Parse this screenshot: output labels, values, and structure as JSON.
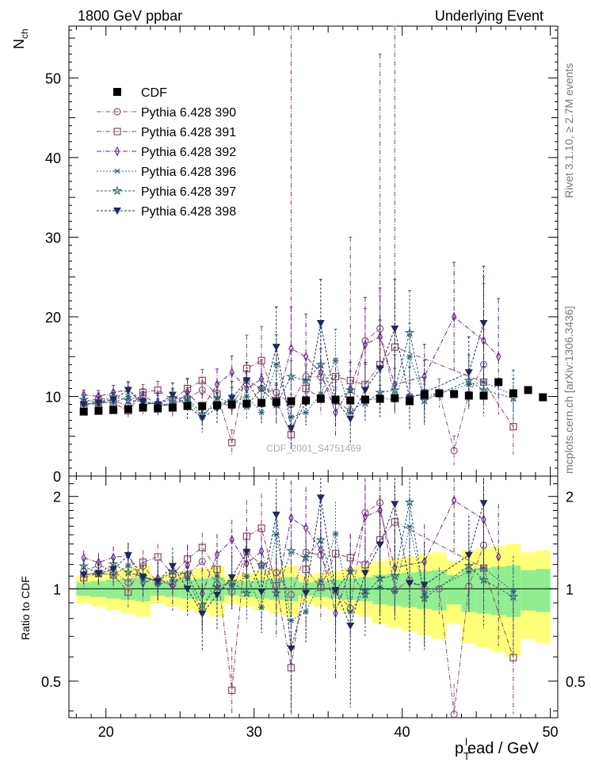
{
  "header": {
    "left": "1800 GeV ppbar",
    "right": "Underlying Event"
  },
  "side_labels": {
    "rivet": "Rivet 3.1.10, ≥ 2.7M events",
    "mcplots": "mcplots.cern.ch [arXiv:1306.3436]"
  },
  "watermark": "CDF_2001_S4751469",
  "chart_data": {
    "type": "scatter",
    "x_range": [
      17.5,
      50.5
    ],
    "x_ticks": [
      20,
      30,
      40,
      50
    ],
    "xlabel": {
      "main": "p",
      "sub": "T",
      "sup": "l",
      "rest": "ead / GeV"
    },
    "main": {
      "ylabel": {
        "main": "N",
        "sub": "ch"
      },
      "ylim": [
        0,
        56.5
      ],
      "y_ticks": [
        0,
        10,
        20,
        30,
        40,
        50
      ]
    },
    "ratio": {
      "ylabel": "Ratio to CDF",
      "ylim": [
        0.38,
        2.33
      ],
      "y_ticks": [
        0.5,
        1,
        2
      ],
      "y_tick_labels": [
        "0.5",
        "1",
        "2"
      ]
    },
    "x": [
      18.5,
      19.5,
      20.5,
      21.5,
      22.5,
      23.5,
      24.5,
      25.5,
      26.5,
      27.5,
      28.5,
      29.5,
      30.5,
      31.5,
      32.5,
      33.5,
      34.5,
      35.5,
      36.5,
      37.5,
      38.5,
      39.5,
      40.5,
      41.5,
      42.5,
      43.5,
      44.5,
      45.5,
      46.5,
      47.5,
      48.5,
      49.5
    ],
    "data": {
      "name": "CDF",
      "values": [
        8.1,
        8.2,
        8.3,
        8.4,
        8.6,
        8.5,
        8.6,
        8.8,
        8.8,
        8.9,
        9.0,
        9.1,
        9.2,
        9.3,
        9.4,
        9.5,
        9.7,
        9.6,
        9.5,
        9.6,
        9.7,
        9.8,
        9.4,
        10.2,
        10.4,
        10.3,
        10.1,
        10.1,
        11.8,
        10.4,
        10.8,
        9.9
      ],
      "color": "#000000"
    },
    "series": [
      {
        "name": "Pythia 6.428 390",
        "marker": "circle",
        "color": "#8a5a80",
        "values": [
          9.2,
          9.8,
          9.5,
          8.8,
          10.2,
          8.9,
          8.9,
          9.8,
          10.8,
          9.2,
          8.8,
          12.0,
          11.0,
          10.5,
          9.0,
          12.5,
          12.5,
          9.4,
          8.2,
          17.0,
          18.5,
          9.7,
          10.0,
          10.2,
          10.4,
          3.2,
          10.3,
          14.0,
          null,
          null,
          null,
          null
        ]
      },
      {
        "name": "Pythia 6.428 391",
        "marker": "square",
        "color": "#8a4a63",
        "values": [
          8.8,
          9.2,
          9.2,
          8.2,
          10.5,
          10.8,
          9.6,
          11.0,
          12.0,
          10.3,
          4.2,
          13.5,
          14.5,
          9.5,
          5.2,
          11.0,
          9.8,
          12.5,
          12.0,
          11.5,
          14.0,
          16.2,
          null,
          null,
          null,
          null,
          null,
          11.8,
          null,
          6.2,
          null,
          null
        ]
      },
      {
        "name": "Pythia 6.428 392",
        "marker": "diamond",
        "color": "#6a2a8a",
        "values": [
          10.2,
          10.0,
          10.5,
          10.8,
          9.0,
          9.2,
          8.8,
          10.5,
          8.5,
          11.5,
          13.0,
          11.0,
          12.2,
          9.0,
          16.0,
          15.0,
          13.0,
          8.0,
          11.0,
          16.5,
          17.5,
          11.5,
          null,
          12.5,
          null,
          20.0,
          null,
          17.0,
          15.0,
          null,
          null,
          null
        ]
      },
      {
        "name": "Pythia 6.428 396",
        "marker": "asterisk",
        "color": "#2f6a80",
        "values": [
          9.0,
          9.3,
          9.2,
          10.0,
          9.5,
          8.8,
          9.2,
          9.5,
          7.4,
          9.8,
          9.2,
          10.0,
          8.0,
          14.0,
          7.4,
          8.0,
          10.3,
          14.5,
          8.0,
          9.5,
          9.8,
          9.6,
          15.0,
          9.8,
          null,
          null,
          11.5,
          11.8,
          null,
          10.2,
          null,
          null
        ]
      },
      {
        "name": "Pythia 6.428 397",
        "marker": "star",
        "color": "#2f5e70",
        "values": [
          9.6,
          9.2,
          10.0,
          9.5,
          9.4,
          9.0,
          9.8,
          9.8,
          7.8,
          9.0,
          9.5,
          8.8,
          11.0,
          9.0,
          12.5,
          12.0,
          14.0,
          9.5,
          10.8,
          9.2,
          10.5,
          10.8,
          18.0,
          9.5,
          null,
          null,
          12.0,
          10.8,
          null,
          9.8,
          null,
          null
        ]
      },
      {
        "name": "Pythia 6.428 398",
        "marker": "tri-down",
        "color": "#1f2a5a",
        "values": [
          9.0,
          9.2,
          9.6,
          10.8,
          9.4,
          9.0,
          10.2,
          8.8,
          7.3,
          8.5,
          9.8,
          12.0,
          9.0,
          16.2,
          6.0,
          9.2,
          19.2,
          9.5,
          7.2,
          10.8,
          13.5,
          18.5,
          9.8,
          10.5,
          null,
          null,
          13.0,
          19.2,
          null,
          null,
          null,
          null
        ]
      }
    ]
  }
}
